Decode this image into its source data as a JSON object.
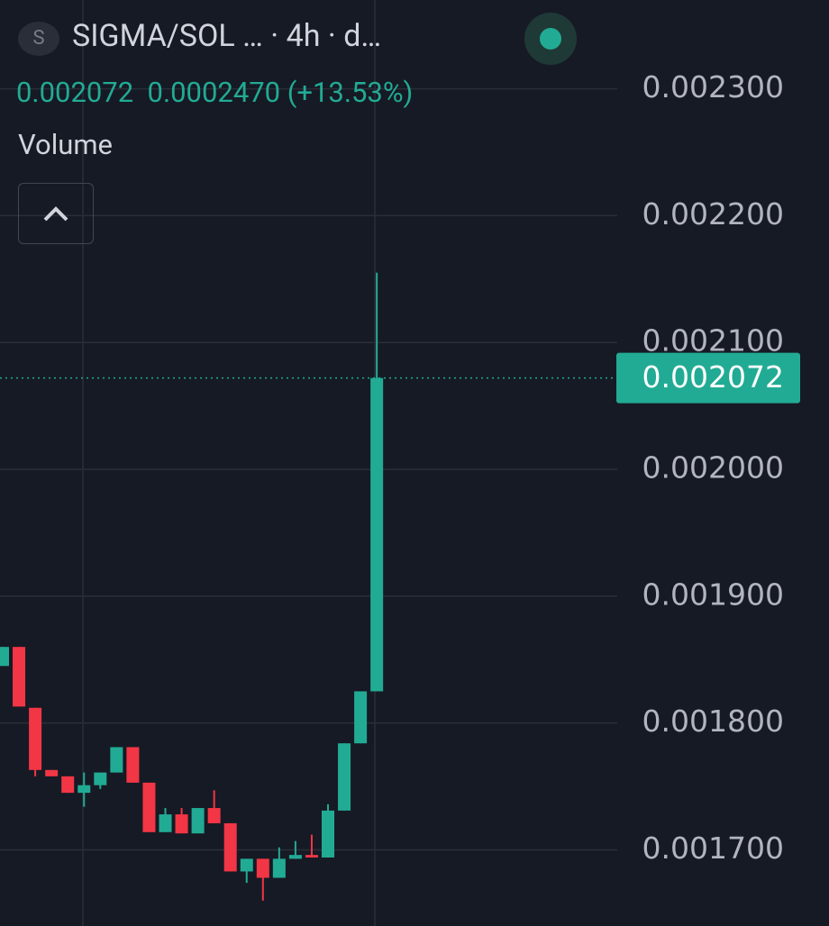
{
  "header": {
    "avatar": "S",
    "symbol": "SIGMA/SOL …",
    "interval": " · 4h · d…",
    "price": "0.002072",
    "change": "0.0002470 (+13.53%)",
    "study": "Volume"
  },
  "chart_data": {
    "type": "candlestick",
    "up_color": "#22ab94",
    "down_color": "#f23645",
    "grid": true,
    "ylim": [
      0.00164,
      0.00237
    ],
    "yticks": [
      {
        "value": 0.0017,
        "label": "0.001700"
      },
      {
        "value": 0.0018,
        "label": "0.001800"
      },
      {
        "value": 0.0019,
        "label": "0.001900"
      },
      {
        "value": 0.002,
        "label": "0.002000"
      },
      {
        "value": 0.0021,
        "label": "0.002100"
      },
      {
        "value": 0.0022,
        "label": "0.002200"
      },
      {
        "value": 0.0023,
        "label": "0.002300"
      }
    ],
    "last_price": 0.002072,
    "open": [
      0.001845,
      0.00186,
      0.001812,
      0.001763,
      0.001758,
      0.001745,
      0.001751,
      0.001761,
      0.001781,
      0.001753,
      0.001714,
      0.001728,
      0.001713,
      0.001733,
      0.001721,
      0.001683,
      0.001693,
      0.001678,
      0.001693,
      0.001696,
      0.001694,
      0.001731,
      0.001784,
      0.001825
    ],
    "high": [
      0.00186,
      0.00186,
      0.001812,
      0.001763,
      0.001758,
      0.001761,
      0.001761,
      0.001781,
      0.001781,
      0.001753,
      0.001733,
      0.001733,
      0.001733,
      0.001747,
      0.001721,
      0.001693,
      0.001693,
      0.001702,
      0.001707,
      0.001712,
      0.001736,
      0.001784,
      0.001825,
      0.002155
    ],
    "low": [
      0.001845,
      0.001813,
      0.001758,
      0.001758,
      0.001745,
      0.001734,
      0.001748,
      0.001761,
      0.001753,
      0.001714,
      0.001714,
      0.001713,
      0.001713,
      0.001721,
      0.001683,
      0.001674,
      0.00166,
      0.001678,
      0.001693,
      0.001694,
      0.001694,
      0.001731,
      0.001784,
      0.001825
    ],
    "close": [
      0.00186,
      0.001813,
      0.001763,
      0.001758,
      0.001745,
      0.001751,
      0.001761,
      0.001781,
      0.001753,
      0.001714,
      0.001728,
      0.001713,
      0.001733,
      0.001721,
      0.001683,
      0.001693,
      0.001678,
      0.001693,
      0.001696,
      0.001694,
      0.001731,
      0.001784,
      0.001825,
      0.002072
    ]
  }
}
